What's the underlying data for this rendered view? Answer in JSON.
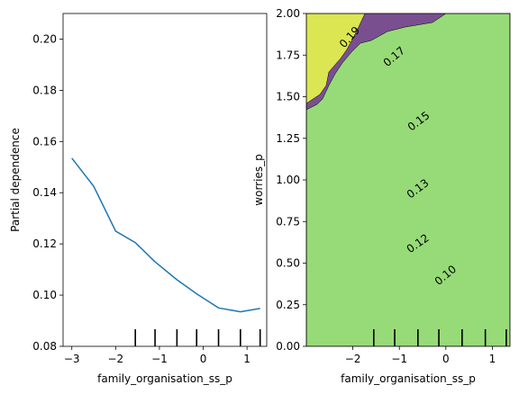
{
  "chart_data": [
    {
      "type": "line",
      "xlabel": "family_organisation_ss_p",
      "ylabel": "Partial dependence",
      "xlim": [
        -3.2,
        1.45
      ],
      "ylim": [
        0.08,
        0.21
      ],
      "xticks": [
        -3,
        -2,
        -1,
        0,
        1
      ],
      "xtick_labels": [
        "−3",
        "−2",
        "−1",
        "0",
        "1"
      ],
      "yticks": [
        0.08,
        0.1,
        0.12,
        0.14,
        0.16,
        0.18,
        0.2
      ],
      "ytick_labels": [
        "0.08",
        "0.10",
        "0.12",
        "0.14",
        "0.16",
        "0.18",
        "0.20"
      ],
      "series": [
        {
          "color": "#1f77b4",
          "x": [
            -3.0,
            -2.5,
            -2.0,
            -1.55,
            -1.1,
            -0.6,
            -0.15,
            0.35,
            0.85,
            1.3
          ],
          "y": [
            0.1535,
            0.1425,
            0.125,
            0.1205,
            0.113,
            0.106,
            0.1005,
            0.095,
            0.0935,
            0.0948
          ]
        }
      ],
      "rug_x": [
        -1.55,
        -1.1,
        -0.6,
        -0.15,
        0.35,
        0.85,
        1.3
      ]
    },
    {
      "type": "contour",
      "xlabel": "family_organisation_ss_p",
      "ylabel": "worries_p",
      "xlim": [
        -3.0,
        1.38
      ],
      "ylim": [
        0.0,
        2.0
      ],
      "xticks": [
        -2,
        -1,
        0,
        1
      ],
      "xtick_labels": [
        "−2",
        "−1",
        "0",
        "1"
      ],
      "yticks": [
        0.0,
        0.25,
        0.5,
        0.75,
        1.0,
        1.25,
        1.5,
        1.75,
        2.0
      ],
      "ytick_labels": [
        "0.00",
        "0.25",
        "0.50",
        "0.75",
        "1.00",
        "1.25",
        "1.50",
        "1.75",
        "2.00"
      ],
      "contour_labels": [
        "0.19",
        "0.17",
        "0.15",
        "0.13",
        "0.12",
        "0.10"
      ],
      "level_colors": [
        "#7a4f90",
        "#6e73a6",
        "#5f8aa0",
        "#53aca6",
        "#5cc792",
        "#97db78",
        "#dce653"
      ],
      "rug_x": [
        -1.55,
        -1.1,
        -0.6,
        -0.15,
        0.35,
        0.85,
        1.3
      ]
    }
  ]
}
